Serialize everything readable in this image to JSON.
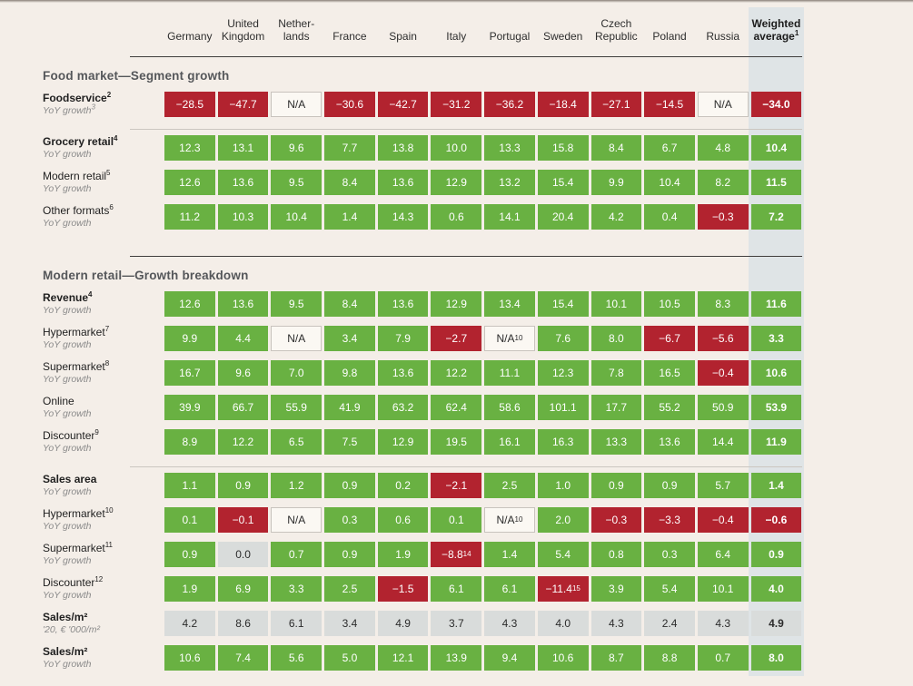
{
  "colors": {
    "background": "#F4EEE8",
    "green": "#69B142",
    "red": "#B2232F",
    "na_bg": "#FBF8F3",
    "na_border": "#C8C3BD",
    "gray_bg": "#D9DCDB",
    "strip": "#DFE4E6",
    "divider_dark": "#403E3D",
    "divider_light": "#CBC6C0",
    "title_text": "#55575A",
    "label_text": "#1F1F1F",
    "sub_text": "#8A8A8A",
    "cell_text_light": "#FFFFFF",
    "cell_text_dark": "#2B2B2B"
  },
  "chart_data": {
    "type": "table",
    "legend_note": "cell color: green = positive, red = negative, gray = neutral value, bordered light = N/A; last column highlighted as weighted average",
    "columns": [
      {
        "id": "germany",
        "lines": [
          "Germany"
        ]
      },
      {
        "id": "united-kingdom",
        "lines": [
          "United",
          "Kingdom"
        ]
      },
      {
        "id": "netherlands",
        "lines": [
          "Nether-",
          "lands"
        ]
      },
      {
        "id": "france",
        "lines": [
          "France"
        ]
      },
      {
        "id": "spain",
        "lines": [
          "Spain"
        ]
      },
      {
        "id": "italy",
        "lines": [
          "Italy"
        ]
      },
      {
        "id": "portugal",
        "lines": [
          "Portugal"
        ]
      },
      {
        "id": "sweden",
        "lines": [
          "Sweden"
        ]
      },
      {
        "id": "czech-republic",
        "lines": [
          "Czech",
          "Republic"
        ]
      },
      {
        "id": "poland",
        "lines": [
          "Poland"
        ]
      },
      {
        "id": "russia",
        "lines": [
          "Russia"
        ]
      },
      {
        "id": "weighted-average",
        "lines": [
          "Weighted",
          "average"
        ],
        "sup": "1",
        "bold": true,
        "highlight": true
      }
    ],
    "sections": [
      {
        "title": "Food market—Segment growth",
        "groups": [
          {
            "rows": [
              {
                "id": "foodservice",
                "label": "Foodservice",
                "label_sup": "2",
                "bold": true,
                "sub": "YoY growth",
                "sub_sup": "3",
                "cells": [
                  {
                    "v": "−28.5",
                    "t": "red"
                  },
                  {
                    "v": "−47.7",
                    "t": "red"
                  },
                  {
                    "v": "N/A",
                    "t": "na"
                  },
                  {
                    "v": "−30.6",
                    "t": "red"
                  },
                  {
                    "v": "−42.7",
                    "t": "red"
                  },
                  {
                    "v": "−31.2",
                    "t": "red"
                  },
                  {
                    "v": "−36.2",
                    "t": "red"
                  },
                  {
                    "v": "−18.4",
                    "t": "red"
                  },
                  {
                    "v": "−27.1",
                    "t": "red"
                  },
                  {
                    "v": "−14.5",
                    "t": "red"
                  },
                  {
                    "v": "N/A",
                    "t": "na"
                  },
                  {
                    "v": "−34.0",
                    "t": "red"
                  }
                ]
              }
            ]
          },
          {
            "rows": [
              {
                "id": "grocery-retail",
                "label": "Grocery retail",
                "label_sup": "4",
                "bold": true,
                "sub": "YoY growth",
                "cells": [
                  "12.3",
                  "13.1",
                  "9.6",
                  "7.7",
                  "13.8",
                  "10.0",
                  "13.3",
                  "15.8",
                  "8.4",
                  "6.7",
                  "4.8",
                  "10.4"
                ]
              },
              {
                "id": "modern-retail",
                "label": "Modern retail",
                "label_sup": "5",
                "sub": "YoY growth",
                "cells": [
                  "12.6",
                  "13.6",
                  "9.5",
                  "8.4",
                  "13.6",
                  "12.9",
                  "13.2",
                  "15.4",
                  "9.9",
                  "10.4",
                  "8.2",
                  "11.5"
                ]
              },
              {
                "id": "other-formats",
                "label": "Other formats",
                "label_sup": "6",
                "sub": "YoY growth",
                "cells": [
                  "11.2",
                  "10.3",
                  "10.4",
                  "1.4",
                  "14.3",
                  "0.6",
                  "14.1",
                  "20.4",
                  "4.2",
                  "0.4",
                  {
                    "v": "−0.3",
                    "t": "red"
                  },
                  "7.2"
                ]
              }
            ]
          }
        ]
      },
      {
        "title": "Modern retail—Growth breakdown",
        "groups": [
          {
            "rows": [
              {
                "id": "revenue",
                "label": "Revenue",
                "label_sup": "4",
                "bold": true,
                "sub": "YoY growth",
                "cells": [
                  "12.6",
                  "13.6",
                  "9.5",
                  "8.4",
                  "13.6",
                  "12.9",
                  "13.4",
                  "15.4",
                  "10.1",
                  "10.5",
                  "8.3",
                  "11.6"
                ]
              },
              {
                "id": "hypermarket-revenue",
                "label": "Hypermarket",
                "label_sup": "7",
                "sub": "YoY growth",
                "cells": [
                  "9.9",
                  "4.4",
                  {
                    "v": "N/A",
                    "t": "na"
                  },
                  "3.4",
                  "7.9",
                  {
                    "v": "−2.7",
                    "t": "red"
                  },
                  {
                    "v": "N/A",
                    "t": "na",
                    "sup": "10"
                  },
                  "7.6",
                  "8.0",
                  {
                    "v": "−6.7",
                    "t": "red"
                  },
                  {
                    "v": "−5.6",
                    "t": "red"
                  },
                  "3.3"
                ]
              },
              {
                "id": "supermarket-revenue",
                "label": "Supermarket",
                "label_sup": "8",
                "sub": "YoY growth",
                "cells": [
                  "16.7",
                  "9.6",
                  "7.0",
                  "9.8",
                  "13.6",
                  "12.2",
                  "11.1",
                  "12.3",
                  "7.8",
                  "16.5",
                  {
                    "v": "−0.4",
                    "t": "red"
                  },
                  "10.6"
                ]
              },
              {
                "id": "online",
                "label": "Online",
                "sub": "YoY growth",
                "cells": [
                  "39.9",
                  "66.7",
                  "55.9",
                  "41.9",
                  "63.2",
                  "62.4",
                  "58.6",
                  "101.1",
                  "17.7",
                  "55.2",
                  "50.9",
                  "53.9"
                ]
              },
              {
                "id": "discounter-revenue",
                "label": "Discounter",
                "label_sup": "9",
                "sub": "YoY growth",
                "cells": [
                  "8.9",
                  "12.2",
                  "6.5",
                  "7.5",
                  "12.9",
                  "19.5",
                  "16.1",
                  "16.3",
                  "13.3",
                  "13.6",
                  "14.4",
                  "11.9"
                ]
              }
            ]
          },
          {
            "rows": [
              {
                "id": "sales-area",
                "label": "Sales area",
                "bold": true,
                "sub": "YoY growth",
                "cells": [
                  "1.1",
                  "0.9",
                  "1.2",
                  "0.9",
                  "0.2",
                  {
                    "v": "−2.1",
                    "t": "red"
                  },
                  "2.5",
                  "1.0",
                  "0.9",
                  "0.9",
                  "5.7",
                  "1.4"
                ]
              },
              {
                "id": "hypermarket-area",
                "label": "Hypermarket",
                "label_sup": "10",
                "sub": "YoY growth",
                "cells": [
                  "0.1",
                  {
                    "v": "−0.1",
                    "t": "red"
                  },
                  {
                    "v": "N/A",
                    "t": "na"
                  },
                  "0.3",
                  "0.6",
                  "0.1",
                  {
                    "v": "N/A",
                    "t": "na",
                    "sup": "10"
                  },
                  "2.0",
                  {
                    "v": "−0.3",
                    "t": "red"
                  },
                  {
                    "v": "−3.3",
                    "t": "red"
                  },
                  {
                    "v": "−0.4",
                    "t": "red"
                  },
                  {
                    "v": "−0.6",
                    "t": "red"
                  }
                ]
              },
              {
                "id": "supermarket-area",
                "label": "Supermarket",
                "label_sup": "11",
                "sub": "YoY growth",
                "cells": [
                  "0.9",
                  {
                    "v": "0.0",
                    "t": "gray"
                  },
                  "0.7",
                  "0.9",
                  "1.9",
                  {
                    "v": "−8.8",
                    "t": "red",
                    "sup": "14"
                  },
                  "1.4",
                  "5.4",
                  "0.8",
                  "0.3",
                  "6.4",
                  "0.9"
                ]
              },
              {
                "id": "discounter-area",
                "label": "Discounter",
                "label_sup": "12",
                "sub": "YoY growth",
                "cells": [
                  "1.9",
                  "6.9",
                  "3.3",
                  "2.5",
                  {
                    "v": "−1.5",
                    "t": "red"
                  },
                  "6.1",
                  "6.1",
                  {
                    "v": "−11.4",
                    "t": "red",
                    "sup": "15"
                  },
                  "3.9",
                  "5.4",
                  "10.1",
                  "4.0"
                ]
              },
              {
                "id": "sales-per-sqm",
                "label": "Sales/m²",
                "bold": true,
                "sub": "'20, € '000/m²",
                "cells": [
                  {
                    "v": "4.2",
                    "t": "gray"
                  },
                  {
                    "v": "8.6",
                    "t": "gray"
                  },
                  {
                    "v": "6.1",
                    "t": "gray"
                  },
                  {
                    "v": "3.4",
                    "t": "gray"
                  },
                  {
                    "v": "4.9",
                    "t": "gray"
                  },
                  {
                    "v": "3.7",
                    "t": "gray"
                  },
                  {
                    "v": "4.3",
                    "t": "gray"
                  },
                  {
                    "v": "4.0",
                    "t": "gray"
                  },
                  {
                    "v": "4.3",
                    "t": "gray"
                  },
                  {
                    "v": "2.4",
                    "t": "gray"
                  },
                  {
                    "v": "4.3",
                    "t": "gray"
                  },
                  {
                    "v": "4.9",
                    "t": "gray"
                  }
                ]
              },
              {
                "id": "sales-per-sqm-growth",
                "label": "Sales/m²",
                "bold": true,
                "sub": "YoY growth",
                "cells": [
                  "10.6",
                  "7.4",
                  "5.6",
                  "5.0",
                  "12.1",
                  "13.9",
                  "9.4",
                  "10.6",
                  "8.7",
                  "8.8",
                  "0.7",
                  "8.0"
                ]
              }
            ]
          }
        ]
      }
    ]
  }
}
